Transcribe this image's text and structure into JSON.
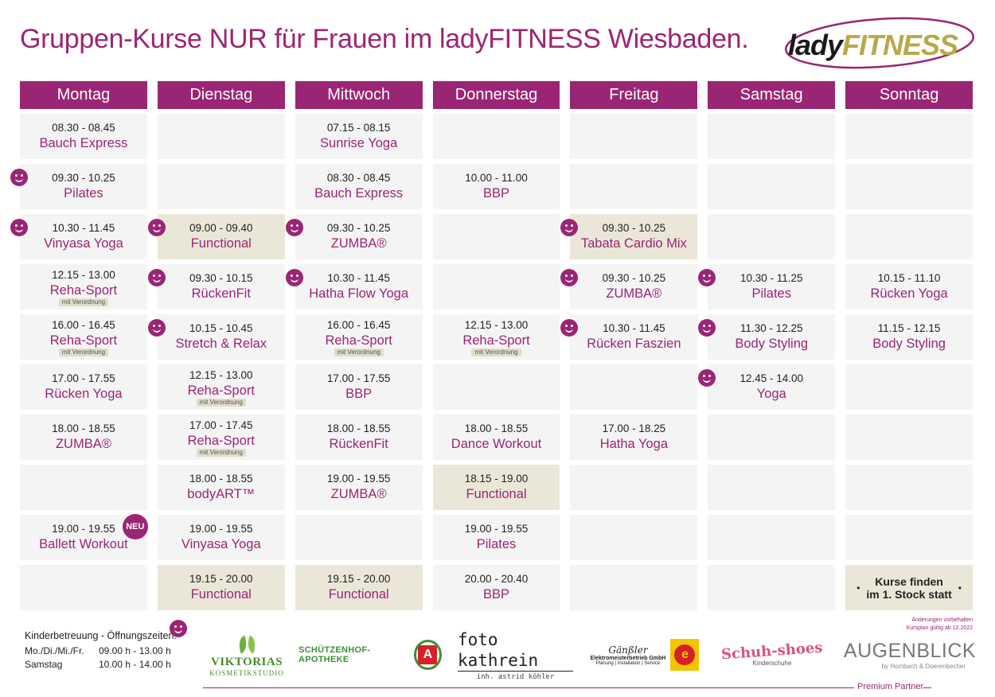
{
  "title": "Gruppen-Kurse NUR für Frauen im ladyFITNESS Wiesbaden.",
  "logo": {
    "lady": "lady",
    "fitness": "FITNESS"
  },
  "days": [
    "Montag",
    "Dienstag",
    "Mittwoch",
    "Donnerstag",
    "Freitag",
    "Samstag",
    "Sonntag"
  ],
  "rows": [
    [
      {
        "time": "08.30 - 08.45",
        "name": "Bauch Express"
      },
      {},
      {
        "time": "07.15 - 08.15",
        "name": "Sunrise Yoga"
      },
      {},
      {},
      {},
      {}
    ],
    [
      {
        "time": "09.30 - 10.25",
        "name": "Pilates",
        "smiley": true
      },
      {},
      {
        "time": "08.30 - 08.45",
        "name": "Bauch Express"
      },
      {
        "time": "10.00 - 11.00",
        "name": "BBP"
      },
      {},
      {},
      {}
    ],
    [
      {
        "time": "10.30 - 11.45",
        "name": "Vinyasa Yoga",
        "smiley": true
      },
      {
        "time": "09.00 - 09.40",
        "name": "Functional",
        "smiley": true,
        "hl": true
      },
      {
        "time": "09.30 - 10.25",
        "name": "ZUMBA®",
        "smiley": true
      },
      {},
      {
        "time": "09.30 - 10.25",
        "name": "Tabata Cardio Mix",
        "smiley": true,
        "hl": true
      },
      {},
      {}
    ],
    [
      {
        "time": "12.15 - 13.00",
        "name": "Reha-Sport",
        "note": "mit Verordnung"
      },
      {
        "time": "09.30 - 10.15",
        "name": "RückenFit",
        "smiley": true
      },
      {
        "time": "10.30 - 11.45",
        "name": "Hatha Flow Yoga",
        "smiley": true
      },
      {},
      {
        "time": "09.30 - 10.25",
        "name": "ZUMBA®",
        "smiley": true
      },
      {
        "time": "10.30 - 11.25",
        "name": "Pilates",
        "smiley": true
      },
      {
        "time": "10.15 - 11.10",
        "name": "Rücken Yoga"
      }
    ],
    [
      {
        "time": "16.00 - 16.45",
        "name": "Reha-Sport",
        "note": "mit Verordnung"
      },
      {
        "time": "10.15 - 10.45",
        "name": "Stretch & Relax",
        "smiley": true
      },
      {
        "time": "16.00 - 16.45",
        "name": "Reha-Sport",
        "note": "mit Verordnung"
      },
      {
        "time": "12.15 - 13.00",
        "name": "Reha-Sport",
        "note": "mit Verordnung"
      },
      {
        "time": "10.30 - 11.45",
        "name": "Rücken Faszien",
        "smiley": true
      },
      {
        "time": "11.30 - 12.25",
        "name": "Body Styling",
        "smiley": true
      },
      {
        "time": "11.15 - 12.15",
        "name": "Body Styling"
      }
    ],
    [
      {
        "time": "17.00 - 17.55",
        "name": "Rücken Yoga"
      },
      {
        "time": "12.15 - 13.00",
        "name": "Reha-Sport",
        "note": "mit Verordnung"
      },
      {
        "time": "17.00 - 17.55",
        "name": "BBP"
      },
      {},
      {},
      {
        "time": "12.45 - 14.00",
        "name": "Yoga",
        "smiley": true
      },
      {}
    ],
    [
      {
        "time": "18.00 - 18.55",
        "name": "ZUMBA®"
      },
      {
        "time": "17.00 - 17.45",
        "name": "Reha-Sport",
        "note": "mit Verordnung"
      },
      {
        "time": "18.00 - 18.55",
        "name": "RückenFit"
      },
      {
        "time": "18.00 - 18.55",
        "name": "Dance Workout"
      },
      {
        "time": "17.00 - 18.25",
        "name": "Hatha Yoga"
      },
      {},
      {}
    ],
    [
      {},
      {
        "time": "18.00 - 18.55",
        "name": "bodyART™"
      },
      {
        "time": "19.00 - 19.55",
        "name": "ZUMBA®"
      },
      {
        "time": "18.15 - 19.00",
        "name": "Functional",
        "hl": true
      },
      {},
      {},
      {}
    ],
    [
      {
        "time": "19.00 - 19.55",
        "name": "Ballett Workout",
        "neu": "NEU"
      },
      {
        "time": "19.00 - 19.55",
        "name": "Vinyasa Yoga"
      },
      {},
      {
        "time": "19.00 - 19.55",
        "name": "Pilates"
      },
      {},
      {},
      {}
    ],
    [
      {},
      {
        "time": "19.15 - 20.00",
        "name": "Functional",
        "hl": true
      },
      {
        "time": "19.15 - 20.00",
        "name": "Functional",
        "hl": true
      },
      {
        "time": "20.00 - 20.40",
        "name": "BBP"
      },
      {},
      {},
      {
        "info1": "Kurse finden",
        "info2": "im 1. Stock statt",
        "hl": true
      }
    ]
  ],
  "notice": {
    "line1": "Änderungen vorbehalten",
    "line2": "Kursplan gültig ab 12.2022"
  },
  "kinderbetreuung": {
    "title": "Kinderbetreuung - Öffnungszeiten:",
    "lines": [
      {
        "days": "Mo./Di./Mi./Fr.",
        "hours": "09.00 h - 13.00 h"
      },
      {
        "days": "Samstag",
        "hours": "10.00 h - 14.00 h"
      }
    ]
  },
  "sponsors": {
    "viktoria": {
      "name": "VIKTORIAS",
      "sub": "KOSMETIKSTUDIO"
    },
    "apotheke": {
      "name": "SCHÜTZENHOF-APOTHEKE",
      "mark": "A"
    },
    "foto": {
      "name": "foto kathrein",
      "sub": "inh. astrid köhler"
    },
    "gaensler": {
      "script": "Gänßler",
      "bold": "Elektromeisterbetrieb GmbH",
      "small": "Planung | Installation | Service",
      "mark": "e"
    },
    "schuh": {
      "name": "Schuh-shoes",
      "sub": "Kinderschuhe"
    },
    "augenblick": {
      "name": "AUGENBLICK",
      "sub": "by Hombach & Doerenbecher"
    }
  },
  "partner_label": "Premium Partner",
  "colors": {
    "brand": "#9b2575",
    "cell": "#f4f4f4",
    "highlight": "#ebe7d8"
  }
}
